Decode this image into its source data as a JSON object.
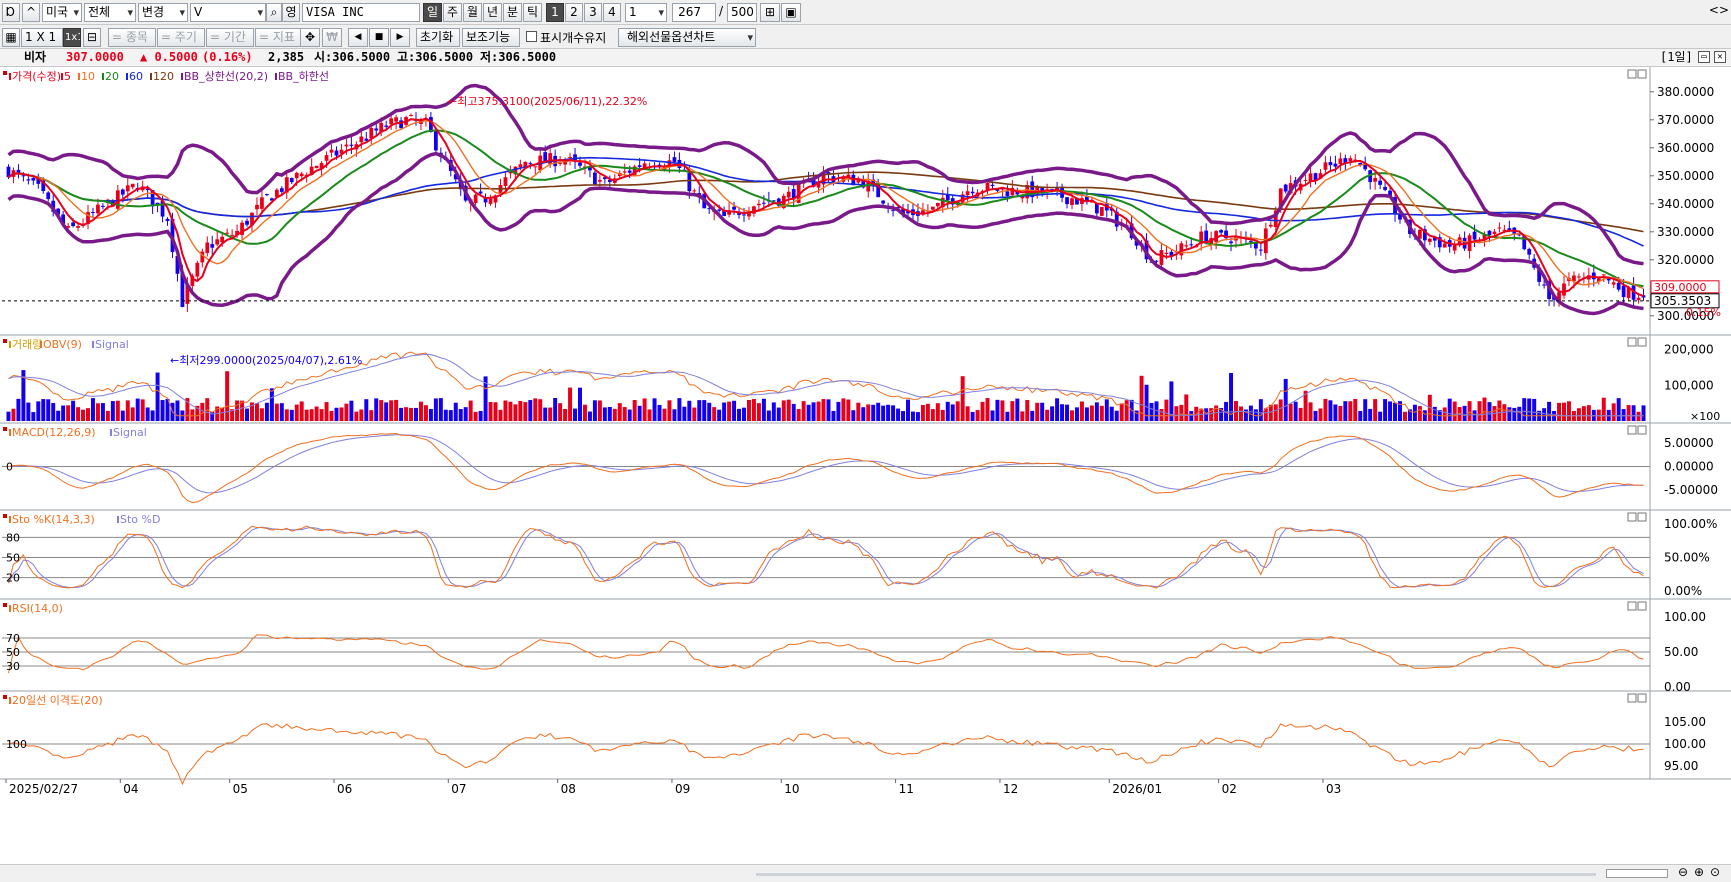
{
  "toolbar": {
    "market": "미국",
    "scope": "전체",
    "change_label": "변경",
    "symbol": "V",
    "circle_label": "영",
    "stock_name": "VISA INC",
    "periods": [
      "일",
      "주",
      "월",
      "년",
      "분",
      "틱"
    ],
    "period_numbers": [
      "1",
      "2",
      "3",
      "4"
    ],
    "interval_value": "1",
    "count_value": "267",
    "count_sep": "/",
    "count_max": "500",
    "layout_1x1": "1 X 1",
    "layout_1x1b": "1x1",
    "grp_symbol": "= 종목",
    "grp_period": "= 주기",
    "grp_range": "= 기간",
    "grp_indicator": "= 지표",
    "reset_label": "초기화",
    "aux_label": "보조기능",
    "keep_label": "표시개수유지",
    "futures_label": "해외선물옵션차트",
    "right_arrows": "<>"
  },
  "infobar": {
    "name": "비자",
    "price": "307.0000",
    "change": "▲ 0.5000",
    "change_pct": "(0.16%)",
    "volume": "2,385",
    "open": "시:306.5000",
    "high": "고:306.5000",
    "low": "저:306.5000",
    "period_tag": "[1일]"
  },
  "colors": {
    "up": "#e8001a",
    "down": "#1400f0",
    "ma5": "#e8001a",
    "ma10": "#f07020",
    "ma20": "#1a8a1a",
    "ma60": "#1428e0",
    "ma120": "#7a3a10",
    "bb": "#7a1a8a",
    "orange": "#f07020",
    "purple": "#8080e0"
  },
  "panels": [
    {
      "id": "price",
      "legend": [
        {
          "text": "가격(수정)",
          "color": "#e8001a"
        },
        {
          "text": "5",
          "color": "#e8001a"
        },
        {
          "text": "10",
          "color": "#f07020"
        },
        {
          "text": "20",
          "color": "#1a8a1a"
        },
        {
          "text": "60",
          "color": "#1428e0"
        },
        {
          "text": "120",
          "color": "#7a3a10"
        },
        {
          "text": "BB_상한선(20,2)",
          "color": "#7a1a8a"
        },
        {
          "text": "BB_하한선",
          "color": "#7a1a8a"
        }
      ],
      "yticks": [
        "380.0000",
        "370.0000",
        "360.0000",
        "350.0000",
        "340.0000",
        "330.0000",
        "320.0000",
        "310.0000",
        "300.0000"
      ],
      "ylim": [
        296,
        386
      ]
    },
    {
      "id": "volume",
      "legend": [
        {
          "text": "거래량",
          "color": "#d4a000"
        },
        {
          "text": "OBV(9)",
          "color": "#f07020"
        },
        {
          "text": "Signal",
          "color": "#8080e0"
        }
      ],
      "yticks": [
        "200,000",
        "100,000",
        "×100"
      ]
    },
    {
      "id": "macd",
      "legend": [
        {
          "text": "MACD(12,26,9)",
          "color": "#f07020"
        },
        {
          "text": "Signal",
          "color": "#8080e0"
        }
      ],
      "yticks": [
        "5.00000",
        "0.00000",
        "-5.00000"
      ],
      "left_ticks": [
        "0"
      ]
    },
    {
      "id": "sto",
      "legend": [
        {
          "text": "Sto %K(14,3,3)",
          "color": "#f07020"
        },
        {
          "text": "Sto %D",
          "color": "#8080e0"
        }
      ],
      "yticks": [
        "100.00%",
        "50.00%",
        "0.00%"
      ],
      "left_ticks": [
        "80",
        "50",
        "20"
      ]
    },
    {
      "id": "rsi",
      "legend": [
        {
          "text": "RSI(14,0)",
          "color": "#f07020"
        }
      ],
      "yticks": [
        "100.00",
        "50.00",
        "0.00"
      ],
      "left_ticks": [
        "70",
        "50",
        "30"
      ]
    },
    {
      "id": "disp",
      "legend": [
        {
          "text": "20일선 이격도(20)",
          "color": "#f07020"
        }
      ],
      "yticks": [
        "105.00",
        "100.00",
        "95.00"
      ],
      "left_ticks": [
        "100"
      ]
    }
  ],
  "annotations": {
    "high": "최고375.3100(2025/06/11),22.32%",
    "low": "최저299.0000(2025/04/07),2.61%",
    "current_price": "305.3503",
    "price_tag_top": "309.0000",
    "price_tag_bottom": "0.15%"
  },
  "xaxis": {
    "labels": [
      "2025/02/27",
      "04",
      "05",
      "06",
      "07",
      "08",
      "09",
      "10",
      "11",
      "12",
      "2026/01",
      "02",
      "03"
    ]
  },
  "chart_data": {
    "type": "candlestick",
    "title": "VISA INC",
    "series": [
      {
        "name": "가격(수정)",
        "close_anchors": [
          [
            0,
            352
          ],
          [
            6,
            345
          ],
          [
            12,
            330
          ],
          [
            20,
            340
          ],
          [
            26,
            347
          ],
          [
            32,
            335
          ],
          [
            35,
            305
          ],
          [
            40,
            325
          ],
          [
            46,
            330
          ],
          [
            52,
            342
          ],
          [
            60,
            352
          ],
          [
            68,
            360
          ],
          [
            76,
            368
          ],
          [
            80,
            370
          ],
          [
            84,
            368
          ],
          [
            87,
            358
          ],
          [
            92,
            340
          ],
          [
            96,
            342
          ],
          [
            104,
            355
          ],
          [
            112,
            356
          ],
          [
            120,
            347
          ],
          [
            128,
            355
          ],
          [
            134,
            355
          ],
          [
            140,
            338
          ],
          [
            144,
            335
          ],
          [
            150,
            340
          ],
          [
            156,
            342
          ],
          [
            164,
            350
          ],
          [
            172,
            348
          ],
          [
            180,
            336
          ],
          [
            186,
            338
          ],
          [
            194,
            346
          ],
          [
            200,
            345
          ],
          [
            208,
            344
          ],
          [
            214,
            342
          ],
          [
            220,
            338
          ],
          [
            226,
            330
          ],
          [
            230,
            320
          ],
          [
            236,
            324
          ],
          [
            240,
            328
          ],
          [
            246,
            328
          ],
          [
            252,
            325
          ],
          [
            256,
            345
          ],
          [
            262,
            350
          ],
          [
            268,
            355
          ],
          [
            270,
            358
          ],
          [
            274,
            350
          ],
          [
            278,
            340
          ],
          [
            282,
            330
          ],
          [
            290,
            325
          ],
          [
            296,
            327
          ],
          [
            300,
            330
          ],
          [
            304,
            327
          ],
          [
            306,
            320
          ],
          [
            310,
            306
          ],
          [
            314,
            312
          ],
          [
            320,
            315
          ],
          [
            326,
            308
          ]
        ]
      },
      {
        "name": "5"
      },
      {
        "name": "10"
      },
      {
        "name": "20"
      },
      {
        "name": "60"
      },
      {
        "name": "120"
      },
      {
        "name": "BB_상한선(20,2)"
      },
      {
        "name": "BB_하한선"
      }
    ],
    "x_range": [
      "2025/02/27",
      "2026/03"
    ],
    "ylim": [
      296,
      386
    ],
    "last": {
      "open": 306.5,
      "high": 306.5,
      "low": 306.5,
      "close": 307.0
    }
  }
}
